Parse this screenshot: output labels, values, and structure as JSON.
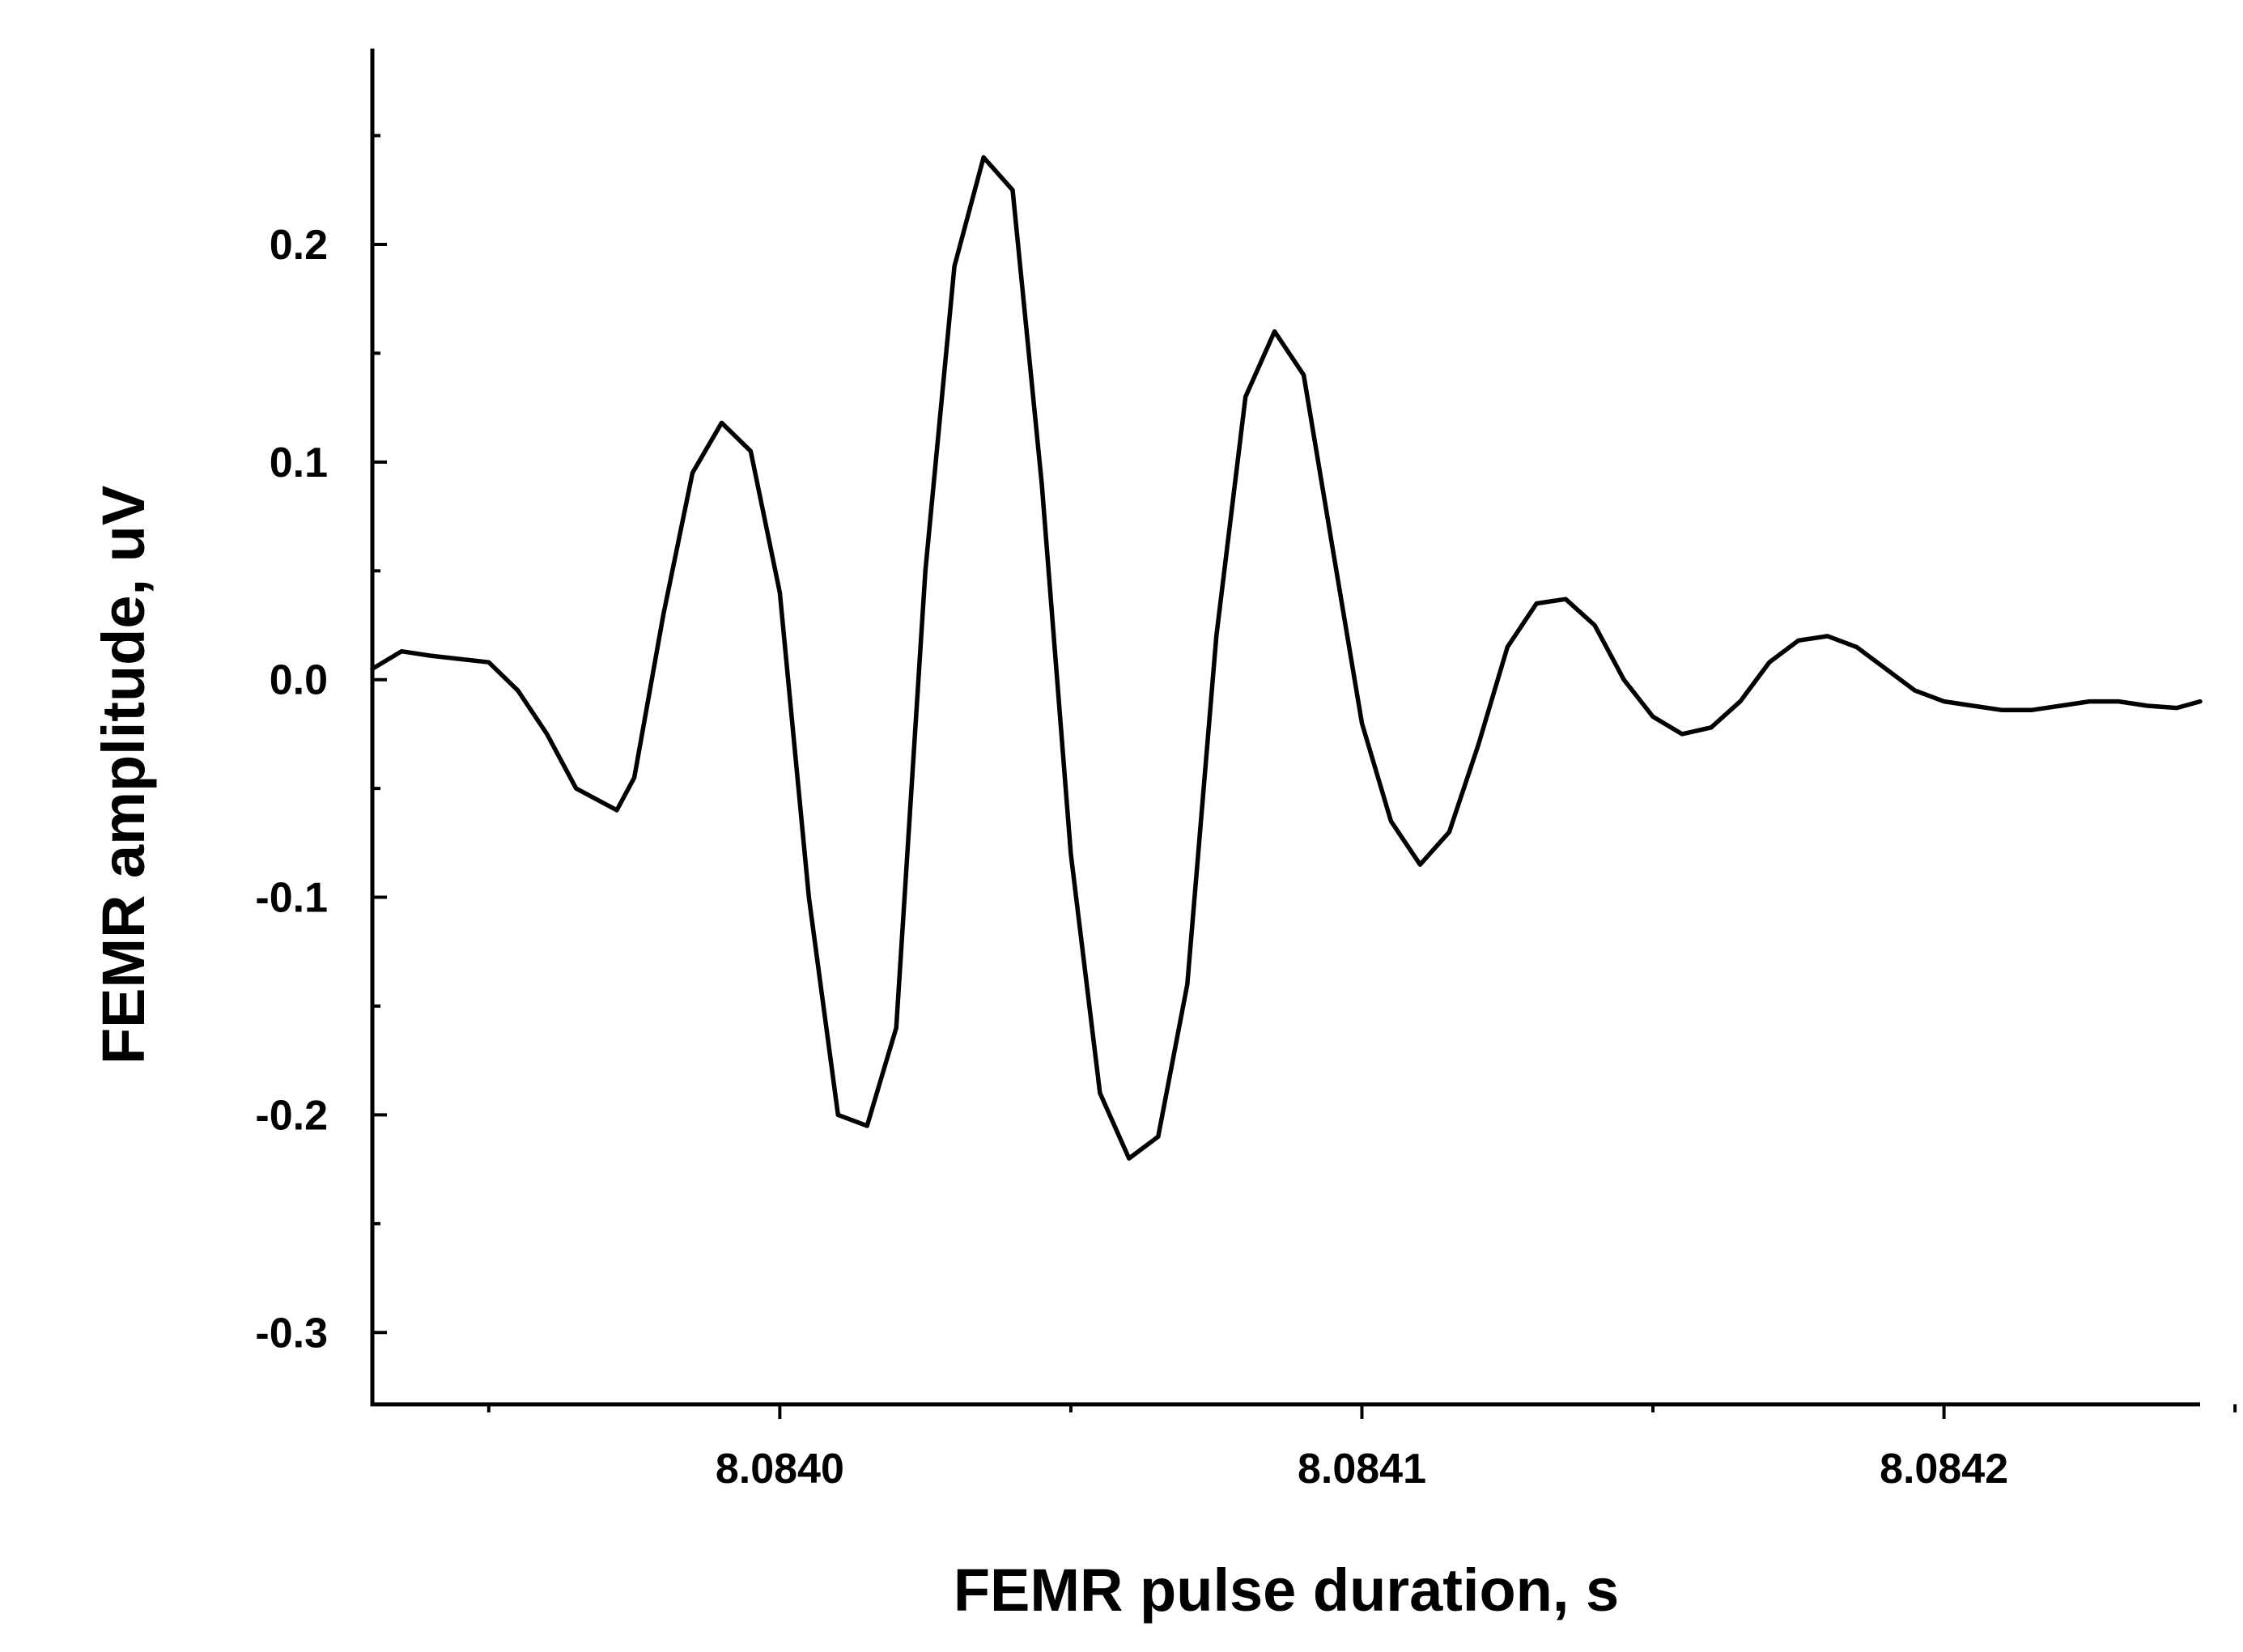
{
  "chart_data": {
    "type": "line",
    "title": "",
    "xlabel": "FEMR pulse duration, s",
    "ylabel": "FEMR amplitude, uV",
    "xlim": [
      8.08393,
      8.084244
    ],
    "ylim": [
      -0.333,
      0.29
    ],
    "xticks": [
      {
        "value": 8.084,
        "label": "8.0840"
      },
      {
        "value": 8.0841,
        "label": "8.0841"
      },
      {
        "value": 8.0842,
        "label": "8.0842"
      }
    ],
    "xminor": [
      8.08395,
      8.08405,
      8.08415,
      8.08425
    ],
    "yticks": [
      {
        "value": 0.2,
        "label": "0.2"
      },
      {
        "value": 0.1,
        "label": "0.1"
      },
      {
        "value": 0.0,
        "label": "0.0"
      },
      {
        "value": -0.1,
        "label": "-0.1"
      },
      {
        "value": -0.2,
        "label": "-0.2"
      },
      {
        "value": -0.3,
        "label": "-0.3"
      }
    ],
    "yminor": [
      0.25,
      0.15,
      0.05,
      -0.05,
      -0.15,
      -0.25
    ],
    "grid": false,
    "series": [
      {
        "name": "",
        "color": "#000000",
        "x": [
          8.08393,
          8.083935,
          8.08394,
          8.08395,
          8.083955,
          8.08396,
          8.083965,
          8.083972,
          8.083975,
          8.08398,
          8.083985,
          8.08399,
          8.083995,
          8.084,
          8.084005,
          8.08401,
          8.084015,
          8.08402,
          8.084025,
          8.08403,
          8.084035,
          8.08404,
          8.084045,
          8.08405,
          8.084055,
          8.08406,
          8.084065,
          8.08407,
          8.084075,
          8.08408,
          8.084085,
          8.08409,
          8.084095,
          8.0841,
          8.084105,
          8.08411,
          8.084115,
          8.08412,
          8.084125,
          8.08413,
          8.084135,
          8.08414,
          8.084145,
          8.08415,
          8.084155,
          8.08416,
          8.084165,
          8.08417,
          8.084175,
          8.08418,
          8.084185,
          8.08419,
          8.084195,
          8.0842,
          8.084205,
          8.08421,
          8.084215,
          8.08422,
          8.084225,
          8.08423,
          8.084235,
          8.08424,
          8.084244
        ],
        "y": [
          0.005,
          0.013,
          0.011,
          0.008,
          -0.005,
          -0.025,
          -0.05,
          -0.06,
          -0.045,
          0.03,
          0.095,
          0.118,
          0.105,
          0.04,
          -0.1,
          -0.2,
          -0.205,
          -0.16,
          0.05,
          0.19,
          0.24,
          0.225,
          0.09,
          -0.08,
          -0.19,
          -0.22,
          -0.21,
          -0.14,
          0.02,
          0.13,
          0.16,
          0.14,
          0.06,
          -0.02,
          -0.065,
          -0.085,
          -0.07,
          -0.03,
          0.015,
          0.035,
          0.037,
          0.025,
          0.0,
          -0.017,
          -0.025,
          -0.022,
          -0.01,
          0.008,
          0.018,
          0.02,
          0.015,
          0.005,
          -0.005,
          -0.01,
          -0.012,
          -0.014,
          -0.014,
          -0.012,
          -0.01,
          -0.01,
          -0.012,
          -0.013,
          -0.01
        ]
      }
    ]
  }
}
